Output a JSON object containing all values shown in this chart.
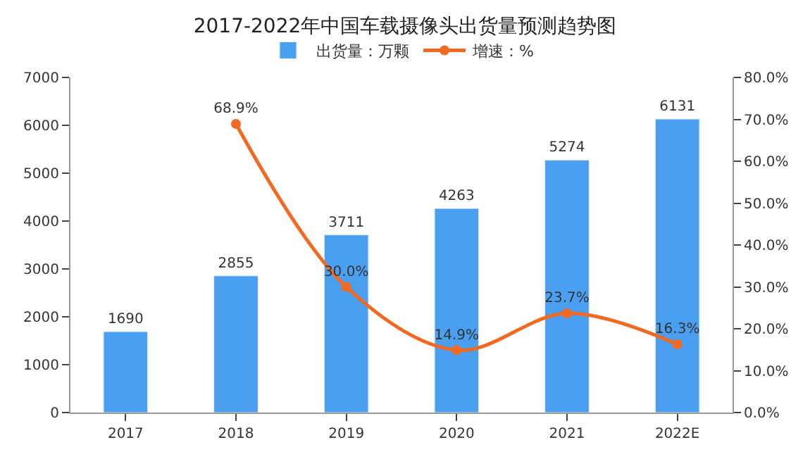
{
  "chart_data": {
    "type": "bar",
    "title": "2017-2022年中国车载摄像头出货量预测趋势图",
    "categories": [
      "2017",
      "2018",
      "2019",
      "2020",
      "2021",
      "2022E"
    ],
    "series": [
      {
        "name": "出货量：万颗",
        "color": "#4a9ff0",
        "values": [
          1690,
          2855,
          3711,
          4263,
          5274,
          6131
        ],
        "value_labels": [
          "1690",
          "2855",
          "3711",
          "4263",
          "5274",
          "6131"
        ]
      },
      {
        "name": "增速：%",
        "type": "line",
        "axis": "y2",
        "color": "#f26a21",
        "marker": "circle",
        "values": [
          null,
          68.9,
          30.0,
          14.9,
          23.7,
          16.3
        ],
        "value_labels": [
          null,
          "68.9%",
          "30.0%",
          "14.9%",
          "23.7%",
          "16.3%"
        ]
      }
    ],
    "ylim": [
      0,
      7000
    ],
    "yticks": [
      0,
      1000,
      2000,
      3000,
      4000,
      5000,
      6000,
      7000
    ],
    "y2lim": [
      0,
      80
    ],
    "y2ticks": [
      {
        "value": 0,
        "label": "0.0%"
      },
      {
        "value": 10,
        "label": "10.0%"
      },
      {
        "value": 20,
        "label": "20.0%"
      },
      {
        "value": 30,
        "label": "30.0%"
      },
      {
        "value": 40,
        "label": "40.0%"
      },
      {
        "value": 50,
        "label": "50.0%"
      },
      {
        "value": 60,
        "label": "60.0%"
      },
      {
        "value": 70,
        "label": "70.0%"
      },
      {
        "value": 80,
        "label": "80.0%"
      }
    ],
    "legend": "top"
  }
}
